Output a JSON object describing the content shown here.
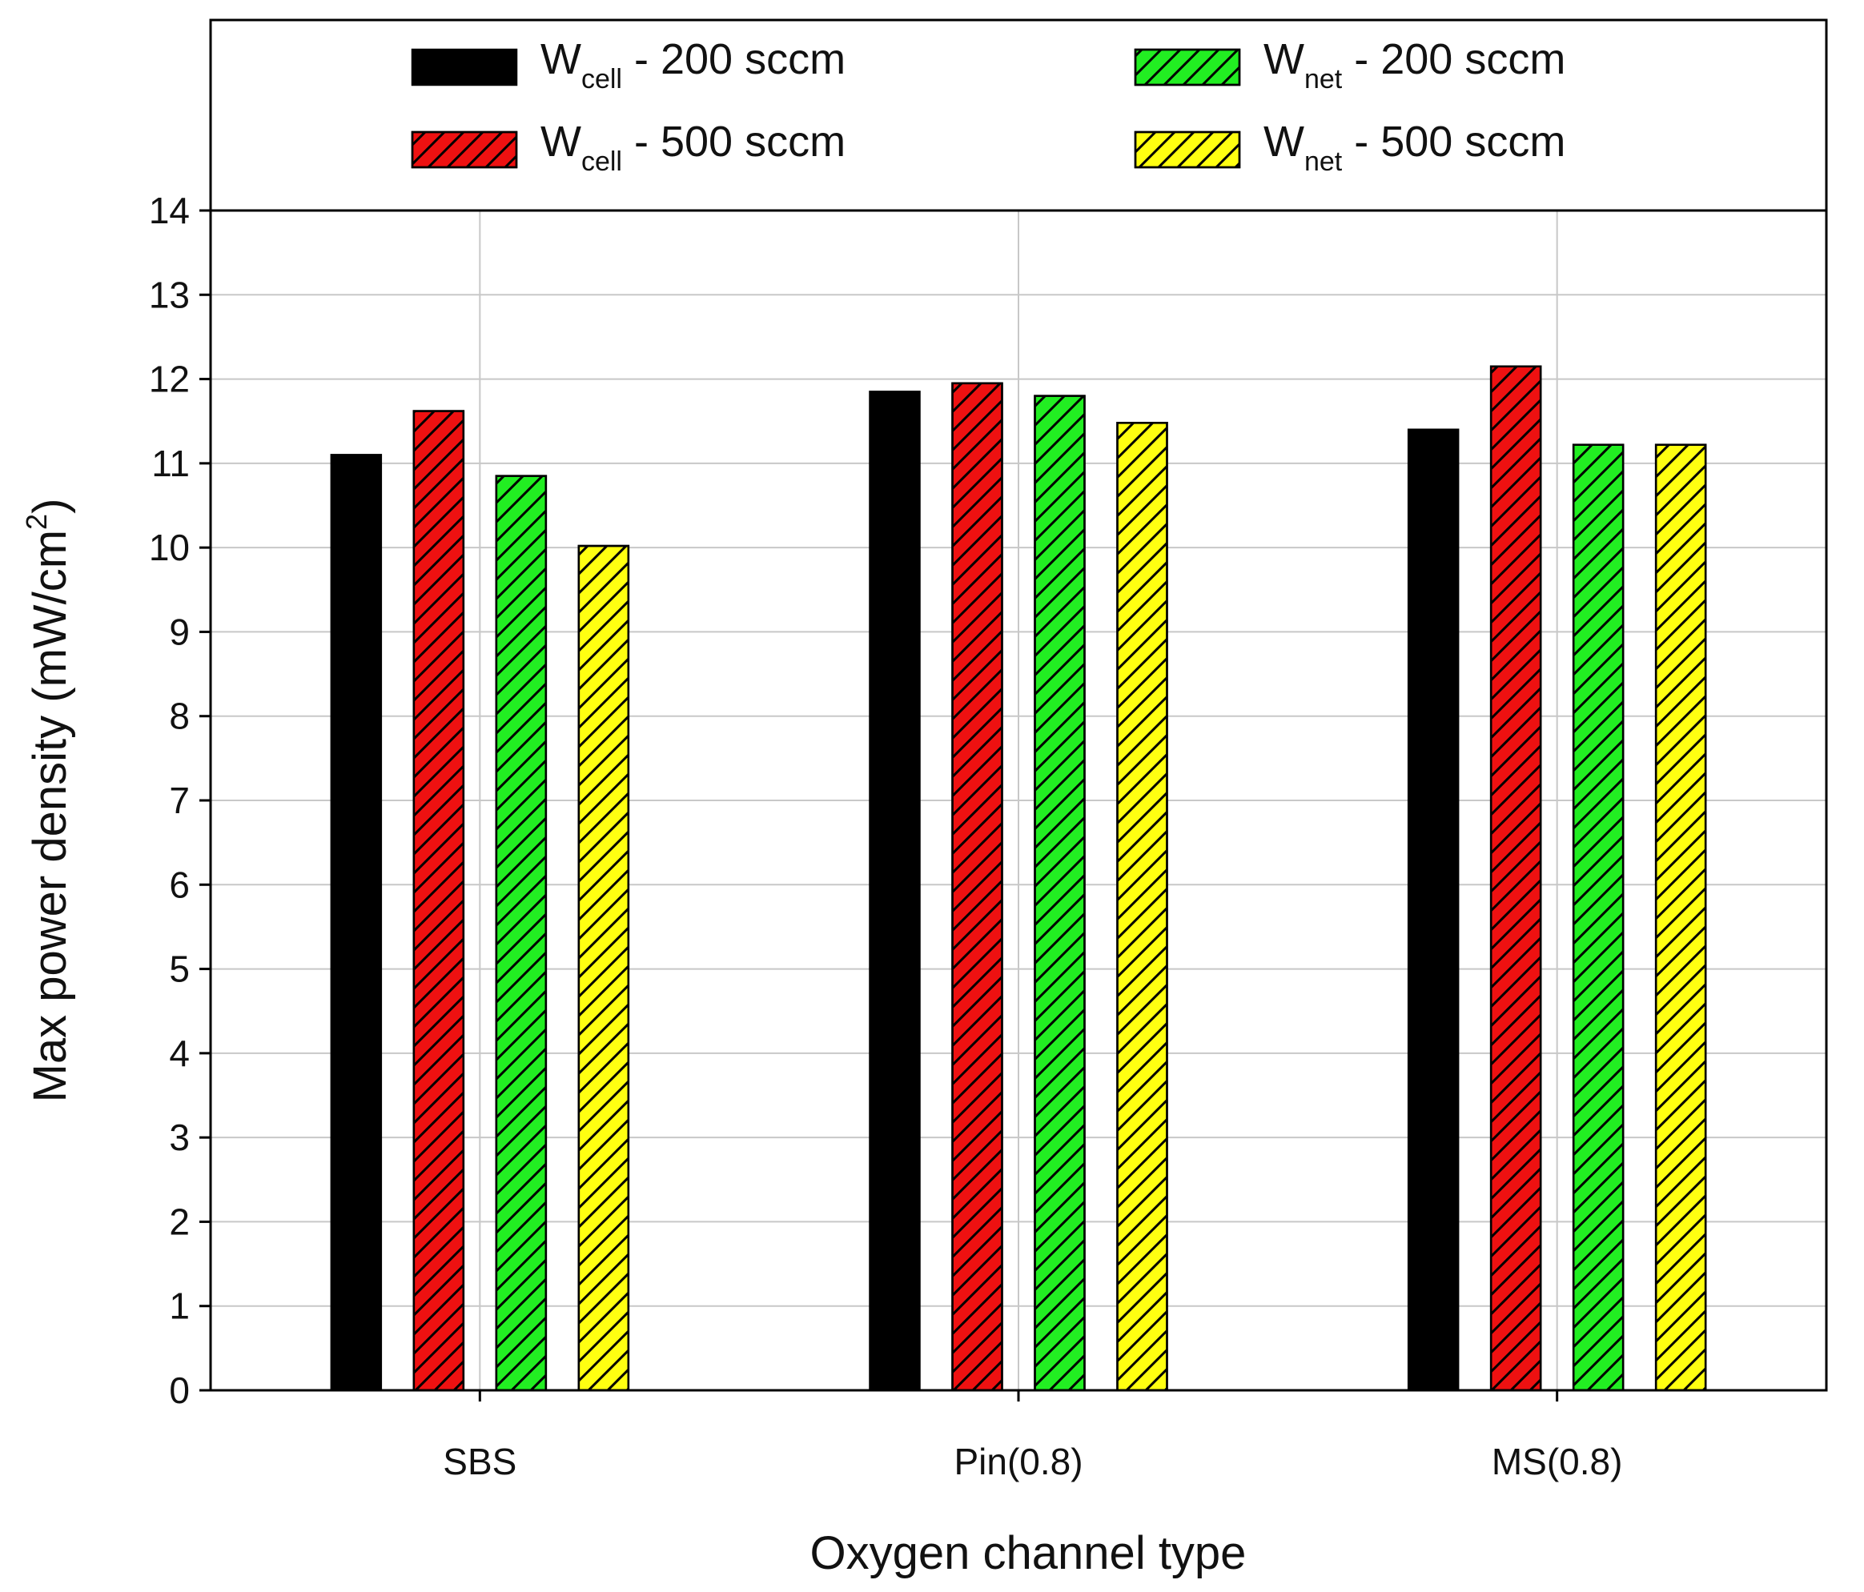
{
  "chart_data": {
    "type": "bar",
    "title": "",
    "xlabel": "Oxygen channel type",
    "ylabel": {
      "main": "Max power density (mW/cm",
      "sup": "2",
      "end": ")"
    },
    "ylim": [
      0,
      14
    ],
    "yticks": [
      0,
      1,
      2,
      3,
      4,
      5,
      6,
      7,
      8,
      9,
      10,
      11,
      12,
      13,
      14
    ],
    "grid": true,
    "legend_position": "top",
    "categories": [
      "SBS",
      "Pin(0.8)",
      "MS(0.8)"
    ],
    "series": [
      {
        "name": "W_cell - 200 sccm",
        "label_base": "W",
        "label_sub": "cell",
        "label_rest": " - 200 sccm",
        "color": "#000000",
        "hatch": false,
        "values": [
          11.1,
          11.85,
          11.4
        ]
      },
      {
        "name": "W_cell - 500 sccm",
        "label_base": "W",
        "label_sub": "cell",
        "label_rest": " - 500 sccm",
        "color": "#ee1111",
        "hatch": true,
        "values": [
          11.62,
          11.95,
          12.15
        ]
      },
      {
        "name": "W_net - 200 sccm",
        "label_base": "W",
        "label_sub": "net",
        "label_rest": " - 200 sccm",
        "color": "#22ee22",
        "hatch": true,
        "values": [
          10.85,
          11.8,
          11.22
        ]
      },
      {
        "name": "W_net - 500 sccm",
        "label_base": "W",
        "label_sub": "net",
        "label_rest": " - 500 sccm",
        "color": "#ffff11",
        "hatch": true,
        "values": [
          10.02,
          11.48,
          11.22
        ]
      }
    ]
  }
}
